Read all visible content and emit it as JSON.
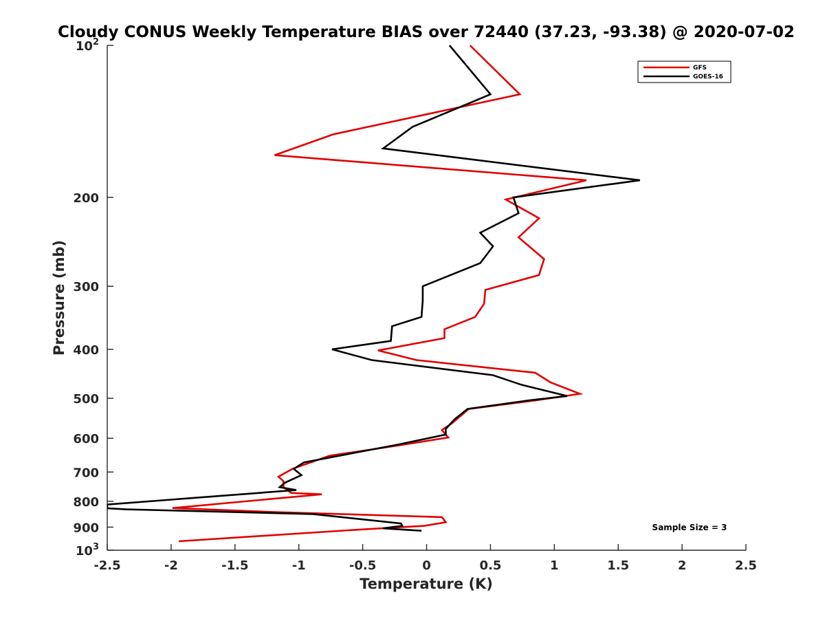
{
  "chart_data": {
    "type": "line",
    "title": "Cloudy CONUS Weekly Temperature BIAS over 72440 (37.23, -93.38) @ 2020-07-02",
    "xlabel": "Temperature (K)",
    "ylabel": "Pressure (mb)",
    "xlim": [
      -2.5,
      2.5
    ],
    "ylim": [
      100,
      1000
    ],
    "yscale": "log",
    "y_reversed": true,
    "grid": false,
    "legend_position": "top-right",
    "x_ticks": [
      -2.5,
      -2,
      -1.5,
      -1,
      -0.5,
      0,
      0.5,
      1,
      1.5,
      2,
      2.5
    ],
    "x_tick_labels": [
      "-2.5",
      "-2",
      "-1.5",
      "-1",
      "-0.5",
      "0",
      "0.5",
      "1",
      "1.5",
      "2",
      "2.5"
    ],
    "y_ticks": [
      100,
      200,
      300,
      400,
      500,
      600,
      700,
      800,
      900,
      1000
    ],
    "y_tick_labels": [
      {
        "base": "10",
        "exp": "2"
      },
      {
        "base": "200",
        "exp": ""
      },
      {
        "base": "300",
        "exp": ""
      },
      {
        "base": "400",
        "exp": ""
      },
      {
        "base": "500",
        "exp": ""
      },
      {
        "base": "600",
        "exp": ""
      },
      {
        "base": "700",
        "exp": ""
      },
      {
        "base": "800",
        "exp": ""
      },
      {
        "base": "900",
        "exp": ""
      },
      {
        "base": "10",
        "exp": "3"
      }
    ],
    "annotation": "Sample Size = 3",
    "series": [
      {
        "name": "GFS",
        "color": "#e00000",
        "points": [
          [
            0.34,
            100
          ],
          [
            0.73,
            125
          ],
          [
            -0.73,
            150
          ],
          [
            -1.19,
            165
          ],
          [
            1.25,
            185
          ],
          [
            0.62,
            202
          ],
          [
            0.88,
            220
          ],
          [
            0.72,
            240
          ],
          [
            0.92,
            265
          ],
          [
            0.88,
            285
          ],
          [
            0.46,
            305
          ],
          [
            0.45,
            325
          ],
          [
            0.38,
            345
          ],
          [
            0.14,
            365
          ],
          [
            0.14,
            380
          ],
          [
            -0.38,
            402
          ],
          [
            -0.08,
            420
          ],
          [
            0.85,
            445
          ],
          [
            0.97,
            465
          ],
          [
            1.2,
            490
          ],
          [
            0.85,
            505
          ],
          [
            0.33,
            525
          ],
          [
            0.2,
            560
          ],
          [
            0.12,
            578
          ],
          [
            0.17,
            598
          ],
          [
            -0.22,
            620
          ],
          [
            -0.76,
            650
          ],
          [
            -1.05,
            690
          ],
          [
            -1.16,
            715
          ],
          [
            -1.12,
            730
          ],
          [
            -1.12,
            750
          ],
          [
            -1.06,
            770
          ],
          [
            -0.82,
            775
          ],
          [
            -1.99,
            825
          ],
          [
            -1.21,
            840
          ],
          [
            0.12,
            860
          ],
          [
            0.15,
            880
          ],
          [
            -0.02,
            895
          ],
          [
            -0.52,
            910
          ],
          [
            -1.94,
            960
          ]
        ]
      },
      {
        "name": "GOES-16",
        "color": "#000000",
        "points": [
          [
            0.18,
            100
          ],
          [
            0.5,
            125
          ],
          [
            0.34,
            130
          ],
          [
            -0.11,
            145
          ],
          [
            -0.34,
            160
          ],
          [
            1.67,
            185
          ],
          [
            0.68,
            200
          ],
          [
            0.72,
            215
          ],
          [
            0.42,
            235
          ],
          [
            0.52,
            250
          ],
          [
            0.42,
            270
          ],
          [
            -0.03,
            300
          ],
          [
            -0.03,
            320
          ],
          [
            -0.04,
            345
          ],
          [
            -0.27,
            360
          ],
          [
            -0.28,
            385
          ],
          [
            -0.74,
            400
          ],
          [
            -0.43,
            420
          ],
          [
            0.52,
            450
          ],
          [
            0.74,
            470
          ],
          [
            1.1,
            495
          ],
          [
            0.8,
            505
          ],
          [
            0.32,
            525
          ],
          [
            0.22,
            550
          ],
          [
            0.15,
            575
          ],
          [
            0.15,
            590
          ],
          [
            -0.23,
            618
          ],
          [
            -0.96,
            670
          ],
          [
            -1.04,
            690
          ],
          [
            -0.98,
            710
          ],
          [
            -1.11,
            735
          ],
          [
            -1.15,
            750
          ],
          [
            -1.02,
            760
          ],
          [
            -2.5,
            812
          ],
          [
            -2.5,
            826
          ],
          [
            -2.35,
            830
          ],
          [
            -0.89,
            848
          ],
          [
            -0.48,
            870
          ],
          [
            -0.2,
            885
          ],
          [
            -0.19,
            895
          ],
          [
            -0.34,
            905
          ],
          [
            -0.04,
            915
          ]
        ]
      }
    ]
  }
}
